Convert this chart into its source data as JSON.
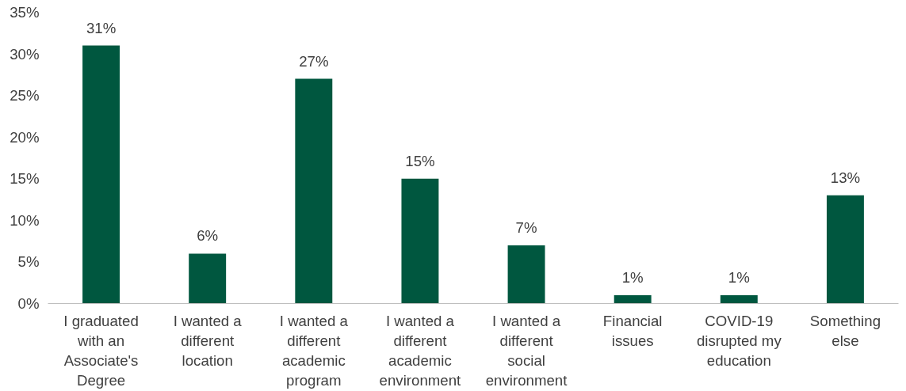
{
  "chart_data": {
    "type": "bar",
    "categories": [
      "I graduated with an Associate's Degree",
      "I wanted a different location",
      "I wanted a different academic program",
      "I wanted a different academic environment",
      "I wanted a different social environment",
      "Financial issues",
      "COVID-19 disrupted my education",
      "Something else"
    ],
    "values": [
      31,
      6,
      27,
      15,
      7,
      1,
      1,
      13
    ],
    "value_labels": [
      "31%",
      "6%",
      "27%",
      "15%",
      "7%",
      "1%",
      "1%",
      "13%"
    ],
    "color": "#00573f",
    "ylim": [
      0,
      35
    ],
    "yticks": [
      {
        "value": 0,
        "label": "0%"
      },
      {
        "value": 5,
        "label": "5%"
      },
      {
        "value": 10,
        "label": "10%"
      },
      {
        "value": 15,
        "label": "15%"
      },
      {
        "value": 20,
        "label": "20%"
      },
      {
        "value": 25,
        "label": "25%"
      },
      {
        "value": 30,
        "label": "30%"
      },
      {
        "value": 35,
        "label": "35%"
      }
    ],
    "grid": false
  }
}
